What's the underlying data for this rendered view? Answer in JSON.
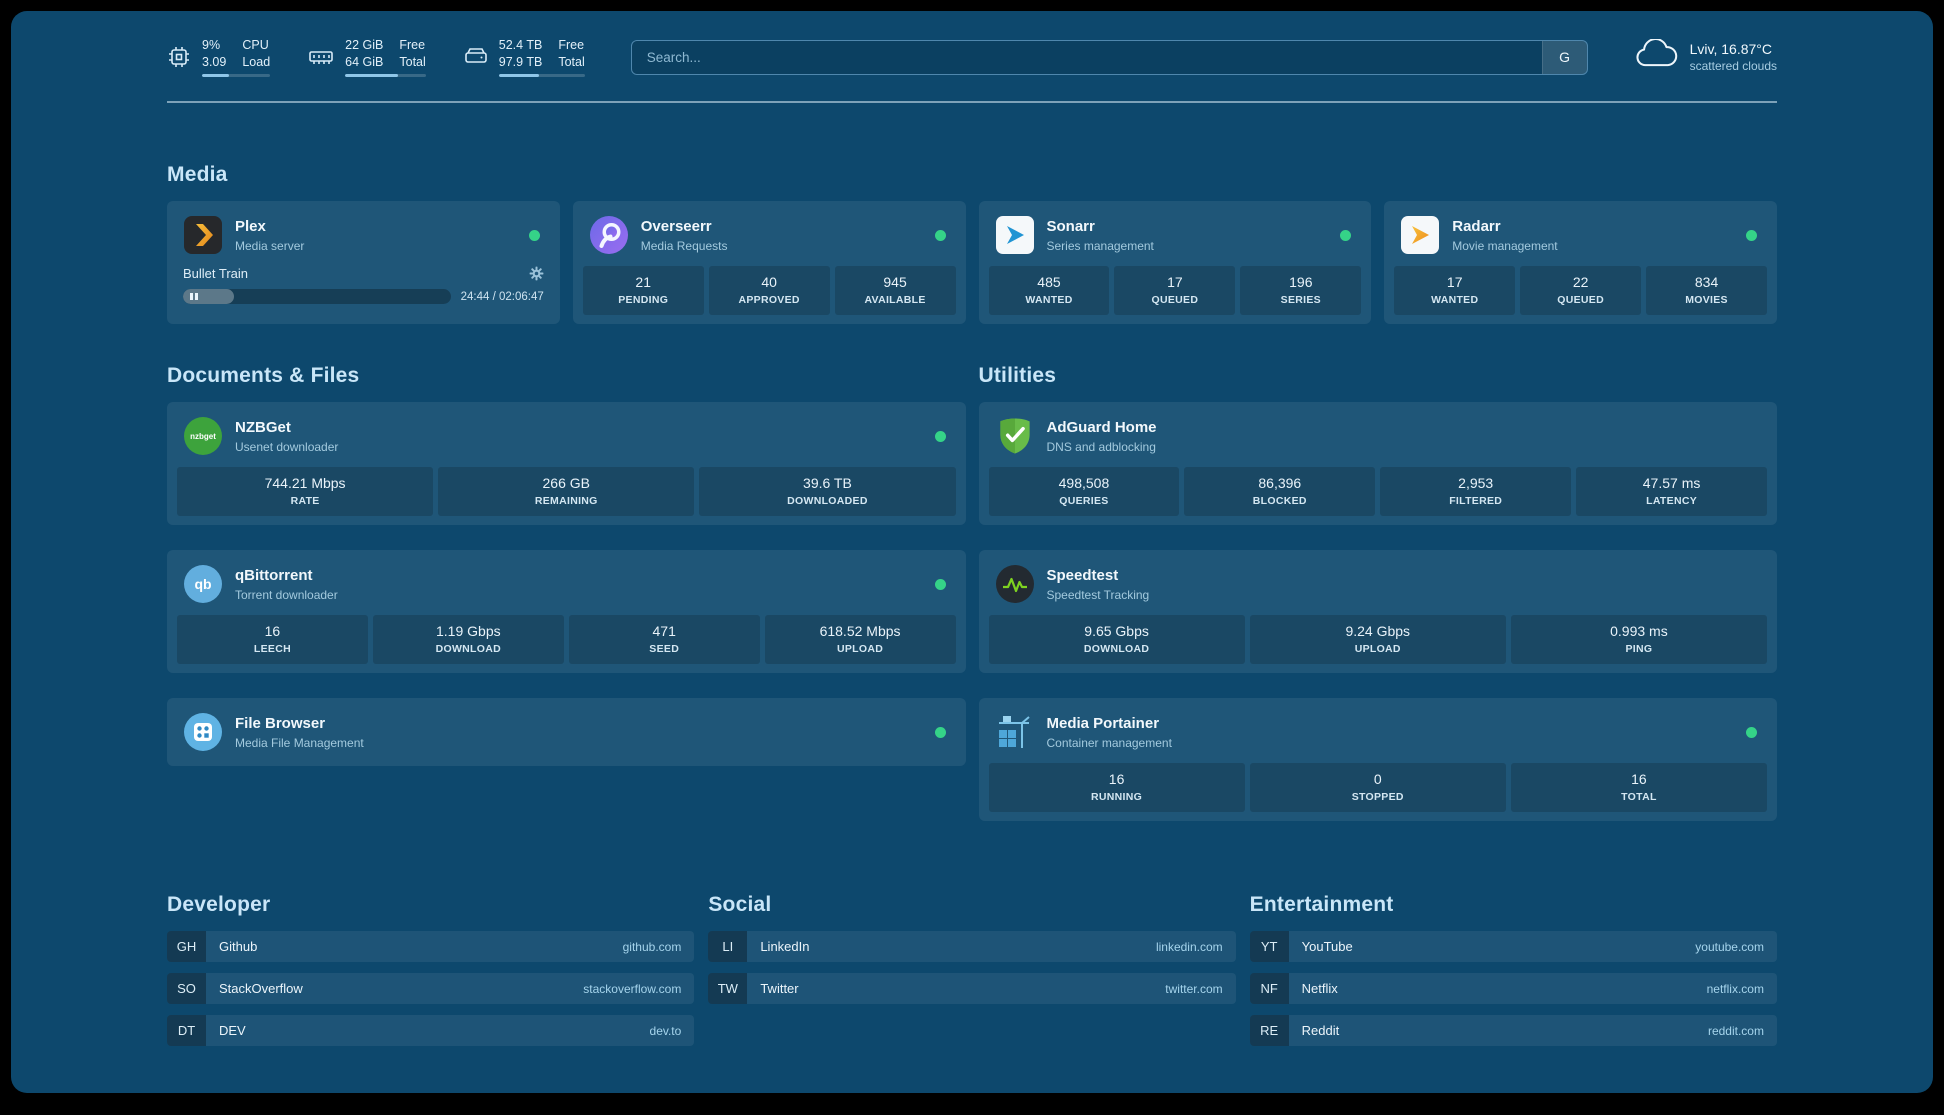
{
  "topbar": {
    "resources": [
      {
        "icon": "cpu-icon",
        "v1": "9%",
        "v2": "3.09",
        "l1": "CPU",
        "l2": "Load",
        "progress": 40
      },
      {
        "icon": "memory-icon",
        "v1": "22 GiB",
        "v2": "64 GiB",
        "l1": "Free",
        "l2": "Total",
        "progress": 66
      },
      {
        "icon": "disk-icon",
        "v1": "52.4 TB",
        "v2": "97.9 TB",
        "l1": "Free",
        "l2": "Total",
        "progress": 47
      }
    ],
    "search": {
      "placeholder": "Search...",
      "provider_label": "G"
    },
    "weather": {
      "location": "Lviv, 16.87°C",
      "condition": "scattered clouds"
    }
  },
  "sections": {
    "media": "Media",
    "documents": "Documents & Files",
    "utilities": "Utilities"
  },
  "media": {
    "plex": {
      "name": "Plex",
      "desc": "Media server",
      "now_playing": "Bullet Train",
      "time": "24:44 / 02:06:47",
      "progress": 19
    },
    "overseerr": {
      "name": "Overseerr",
      "desc": "Media Requests",
      "stats": [
        {
          "value": "21",
          "label": "PENDING"
        },
        {
          "value": "40",
          "label": "APPROVED"
        },
        {
          "value": "945",
          "label": "AVAILABLE"
        }
      ]
    },
    "sonarr": {
      "name": "Sonarr",
      "desc": "Series management",
      "stats": [
        {
          "value": "485",
          "label": "WANTED"
        },
        {
          "value": "17",
          "label": "QUEUED"
        },
        {
          "value": "196",
          "label": "SERIES"
        }
      ]
    },
    "radarr": {
      "name": "Radarr",
      "desc": "Movie management",
      "stats": [
        {
          "value": "17",
          "label": "WANTED"
        },
        {
          "value": "22",
          "label": "QUEUED"
        },
        {
          "value": "834",
          "label": "MOVIES"
        }
      ]
    }
  },
  "documents": {
    "nzbget": {
      "name": "NZBGet",
      "desc": "Usenet downloader",
      "icon_text": "nzbget",
      "stats": [
        {
          "value": "744.21 Mbps",
          "label": "RATE"
        },
        {
          "value": "266 GB",
          "label": "REMAINING"
        },
        {
          "value": "39.6 TB",
          "label": "DOWNLOADED"
        }
      ]
    },
    "qbittorrent": {
      "name": "qBittorrent",
      "desc": "Torrent downloader",
      "icon_text": "qb",
      "stats": [
        {
          "value": "16",
          "label": "LEECH"
        },
        {
          "value": "1.19 Gbps",
          "label": "DOWNLOAD"
        },
        {
          "value": "471",
          "label": "SEED"
        },
        {
          "value": "618.52 Mbps",
          "label": "UPLOAD"
        }
      ]
    },
    "filebrowser": {
      "name": "File Browser",
      "desc": "Media File Management"
    }
  },
  "utilities": {
    "adguard": {
      "name": "AdGuard Home",
      "desc": "DNS and adblocking",
      "stats": [
        {
          "value": "498,508",
          "label": "QUERIES"
        },
        {
          "value": "86,396",
          "label": "BLOCKED"
        },
        {
          "value": "2,953",
          "label": "FILTERED"
        },
        {
          "value": "47.57 ms",
          "label": "LATENCY"
        }
      ]
    },
    "speedtest": {
      "name": "Speedtest",
      "desc": "Speedtest Tracking",
      "stats": [
        {
          "value": "9.65 Gbps",
          "label": "DOWNLOAD"
        },
        {
          "value": "9.24 Gbps",
          "label": "UPLOAD"
        },
        {
          "value": "0.993 ms",
          "label": "PING"
        }
      ]
    },
    "portainer": {
      "name": "Media Portainer",
      "desc": "Container management",
      "stats": [
        {
          "value": "16",
          "label": "RUNNING"
        },
        {
          "value": "0",
          "label": "STOPPED"
        },
        {
          "value": "16",
          "label": "TOTAL"
        }
      ]
    }
  },
  "bookmarks": [
    {
      "title": "Developer",
      "items": [
        {
          "abbr": "GH",
          "name": "Github",
          "url": "github.com"
        },
        {
          "abbr": "SO",
          "name": "StackOverflow",
          "url": "stackoverflow.com"
        },
        {
          "abbr": "DT",
          "name": "DEV",
          "url": "dev.to"
        }
      ]
    },
    {
      "title": "Social",
      "items": [
        {
          "abbr": "LI",
          "name": "LinkedIn",
          "url": "linkedin.com"
        },
        {
          "abbr": "TW",
          "name": "Twitter",
          "url": "twitter.com"
        }
      ]
    },
    {
      "title": "Entertainment",
      "items": [
        {
          "abbr": "YT",
          "name": "YouTube",
          "url": "youtube.com"
        },
        {
          "abbr": "NF",
          "name": "Netflix",
          "url": "netflix.com"
        },
        {
          "abbr": "RE",
          "name": "Reddit",
          "url": "reddit.com"
        }
      ]
    }
  ]
}
